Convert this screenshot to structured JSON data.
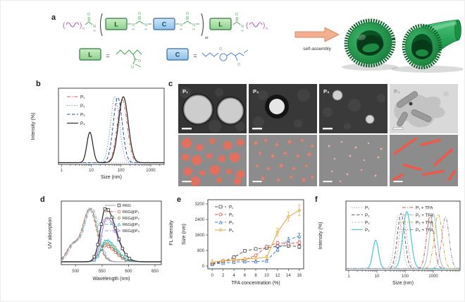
{
  "panel_labels": {
    "a": "a",
    "b": "b",
    "c": "c",
    "d": "d",
    "e": "e",
    "f": "f"
  },
  "panel_a": {
    "monomer_L": "L",
    "monomer_C": "C",
    "equals": "=",
    "sub_m": "m",
    "sub_n": "n",
    "atoms": {
      "O": "O",
      "N": "N",
      "H": "H"
    },
    "arrow_label": "self-assembly",
    "colors": {
      "peg": "#b65ab2",
      "linker": "#4aa85a",
      "core": "#5a8ad8",
      "L_fill": "#b4e2ae",
      "L_stroke": "#2f7a3f",
      "C_fill": "#b2d8f2",
      "C_stroke": "#3a6a9a",
      "arrow_fill": "#f2b091",
      "arrow_stroke": "#d98a62",
      "tube_green": "#1d9a4a"
    }
  },
  "panel_c": {
    "tem_labels": [
      "P₁",
      "P₂",
      "P₃",
      "P₄"
    ]
  },
  "chart_data": [
    {
      "panel": "b",
      "type": "dls_line",
      "xscale": "log",
      "xlabel": "Size (nm)",
      "ylabel": "Intensity (%)",
      "xticks": [
        1,
        10,
        100,
        1000
      ],
      "xrange_nm": [
        1,
        2800
      ],
      "legend_position": "top-left",
      "grid": false,
      "series": [
        {
          "name": "P₁",
          "color": "#d86055",
          "dash": "dashdot",
          "peaks": [
            {
              "center_nm": 110,
              "height_pct": 96,
              "logwidth": 0.165
            }
          ]
        },
        {
          "name": "P₂",
          "color": "#5a8ad8",
          "dash": "dot",
          "peaks": [
            {
              "center_nm": 63,
              "height_pct": 100,
              "logwidth": 0.15
            }
          ]
        },
        {
          "name": "P₃",
          "color": "#2b4f9e",
          "dash": "dash",
          "peaks": [
            {
              "center_nm": 78,
              "height_pct": 99,
              "logwidth": 0.15
            }
          ]
        },
        {
          "name": "P₄",
          "color": "#222222",
          "dash": "solid",
          "peaks": [
            {
              "center_nm": 9,
              "height_pct": 46,
              "logwidth": 0.1
            },
            {
              "center_nm": 120,
              "height_pct": 100,
              "logwidth": 0.165
            }
          ]
        }
      ]
    },
    {
      "panel": "d",
      "type": "spectra",
      "xlabel": "Wavelength (nm)",
      "ylabel_left": "UV absorption",
      "ylabel_right": "FL intensity",
      "xticks": [
        500,
        550,
        600,
        650
      ],
      "xrange_nm": [
        473,
        662
      ],
      "legend_position": "top-right",
      "grid": false,
      "series": [
        {
          "name": "R6G",
          "color": "#333333",
          "abs_color": "#9a9a9a",
          "marker": "square",
          "abs_dash": "solid",
          "abs_peak_nm": 527,
          "abs_height": 1.0,
          "em_peak_nm": 557,
          "em_height": 1.0
        },
        {
          "name": "R6G@P₁",
          "color": "#d85a50",
          "abs_color": "#d85a50",
          "marker": "circle",
          "abs_dash": "dash",
          "abs_peak_nm": 526,
          "abs_height": 0.97,
          "em_peak_nm": 556,
          "em_height": 0.3
        },
        {
          "name": "R6G@P₂",
          "color": "#8a8a55",
          "abs_color": "#8a8a55",
          "marker": "diamond",
          "abs_dash": "dashdot",
          "abs_peak_nm": 528,
          "abs_height": 0.98,
          "em_peak_nm": 557,
          "em_height": 0.34
        },
        {
          "name": "R6G@P₃",
          "color": "#3fbfbf",
          "abs_color": "#3fbfbf",
          "marker": "triangle-up",
          "abs_dash": "dash",
          "abs_peak_nm": 529,
          "abs_height": 0.99,
          "em_peak_nm": 558,
          "em_height": 0.4
        },
        {
          "name": "R6G@P₄",
          "color": "#a88ad8",
          "abs_color": "#a88ad8",
          "marker": "triangle-right",
          "abs_dash": "dashdot",
          "abs_peak_nm": 531,
          "abs_height": 1.0,
          "em_peak_nm": 559,
          "em_height": 0.82
        }
      ]
    },
    {
      "panel": "e",
      "type": "scatter_line",
      "xlabel": "TFA concentration (%)",
      "ylabel": "Size (nm)",
      "x": [
        0,
        2,
        4,
        6,
        8,
        10,
        12,
        14,
        16
      ],
      "yticks": [
        0,
        800,
        1600,
        2400,
        3200
      ],
      "yrange": [
        0,
        3200
      ],
      "legend_position": "top-left",
      "grid": false,
      "series": [
        {
          "name": "P₁",
          "color": "#555555",
          "marker": "square",
          "dash": "dash",
          "values": [
            100,
            230,
            450,
            780,
            880,
            930,
            1020,
            1050,
            1000
          ],
          "errors": [
            60,
            60,
            80,
            70,
            60,
            60,
            80,
            90,
            100
          ]
        },
        {
          "name": "P₂",
          "color": "#d9534f",
          "marker": "circle",
          "dash": "dash",
          "values": [
            150,
            250,
            290,
            320,
            550,
            1000,
            1190,
            1160,
            1210
          ],
          "errors": [
            60,
            50,
            50,
            50,
            60,
            70,
            80,
            80,
            90
          ]
        },
        {
          "name": "P₃",
          "color": "#4a7fd4",
          "marker": "triangle-up",
          "dash": "dash",
          "values": [
            90,
            150,
            200,
            230,
            230,
            260,
            860,
            1350,
            1550
          ],
          "errors": [
            50,
            40,
            50,
            50,
            50,
            50,
            110,
            130,
            140
          ]
        },
        {
          "name": "P₄",
          "color": "#e0a93e",
          "marker": "diamond",
          "dash": "solid",
          "values": [
            200,
            270,
            310,
            360,
            400,
            450,
            1750,
            2550,
            2870
          ],
          "errors": [
            130,
            90,
            90,
            90,
            90,
            100,
            190,
            230,
            280
          ]
        }
      ]
    },
    {
      "panel": "f",
      "type": "dls_line",
      "xscale": "log",
      "xlabel": "Size (nm)",
      "ylabel": "Intensity (%)",
      "xticks": [
        1,
        10,
        100,
        1000
      ],
      "xrange_nm": [
        1,
        8000
      ],
      "legend_position": "top-two-columns",
      "grid": false,
      "series": [
        {
          "name": "P₁",
          "color": "#9a9a9a",
          "dash": "dot",
          "peaks": [
            {
              "center_nm": 58,
              "height_pct": 60,
              "logwidth": 0.13
            }
          ]
        },
        {
          "name": "P₂",
          "color": "#6a6a6a",
          "dash": "dash",
          "peaks": [
            {
              "center_nm": 72,
              "height_pct": 62,
              "logwidth": 0.13
            }
          ]
        },
        {
          "name": "P₃",
          "color": "#e8a8a8",
          "dash": "shortdash",
          "peaks": [
            {
              "center_nm": 85,
              "height_pct": 61,
              "logwidth": 0.13
            }
          ]
        },
        {
          "name": "P₄",
          "color": "#45c8d8",
          "dash": "solid",
          "peaks": [
            {
              "center_nm": 9,
              "height_pct": 32,
              "logwidth": 0.1
            },
            {
              "center_nm": 115,
              "height_pct": 64,
              "logwidth": 0.14
            }
          ]
        },
        {
          "name": "P₁ + TFA",
          "color": "#d9534f",
          "dash": "dashdot",
          "peaks": [
            {
              "center_nm": 780,
              "height_pct": 60,
              "logwidth": 0.13
            }
          ]
        },
        {
          "name": "P₂ + TFA",
          "color": "#a8ccc4",
          "dash": "solid",
          "peaks": [
            {
              "center_nm": 1000,
              "height_pct": 62,
              "logwidth": 0.13
            }
          ]
        },
        {
          "name": "P₃ + TFA",
          "color": "#c8b83a",
          "dash": "dashdot",
          "peaks": [
            {
              "center_nm": 1500,
              "height_pct": 61,
              "logwidth": 0.14
            }
          ]
        },
        {
          "name": "P₄ + TFA",
          "color": "#9a8aae",
          "dash": "dashdot",
          "peaks": [
            {
              "center_nm": 2700,
              "height_pct": 58,
              "logwidth": 0.13
            }
          ]
        }
      ]
    }
  ]
}
